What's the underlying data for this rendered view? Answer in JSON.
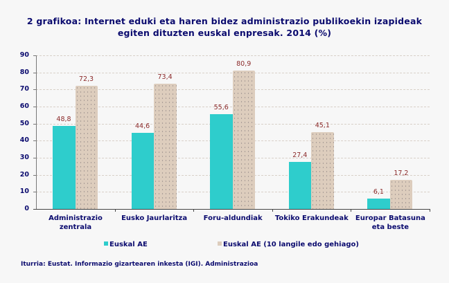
{
  "title_line1": "2 grafikoa: Internet eduki eta haren bidez administrazio publikoekin izapideak",
  "title_line2": "egiten dituzten euskal enpresak. 2014 (%)",
  "y_ticks": [
    "90",
    "80",
    "70",
    "60",
    "50",
    "40",
    "30",
    "20",
    "10",
    "0"
  ],
  "categories": [
    {
      "line1": "Administrazio",
      "line2": "zentrala"
    },
    {
      "line1": "Eusko Jaurlaritza",
      "line2": ""
    },
    {
      "line1": "Foru-aldundiak",
      "line2": ""
    },
    {
      "line1": "Tokiko Erakundeak",
      "line2": ""
    },
    {
      "line1": "Europar Batasuna",
      "line2": "eta beste"
    }
  ],
  "legend": {
    "series1": "Euskal AE",
    "series2": "Euskal AE (10 langile edo gehiago)"
  },
  "colors": {
    "series1": "#2ecdcc",
    "series2": "#ddcdbd",
    "text": "#0a0a6e",
    "value_label": "#8b2a2a"
  },
  "source": "Iturria: Eustat. Informazio gizartearen inkesta (IGI). Administrazioa",
  "labels": {
    "s1": [
      "48,8",
      "44,6",
      "55,6",
      "27,4",
      "6,1"
    ],
    "s2": [
      "72,3",
      "73,4",
      "80,9",
      "45,1",
      "17,2"
    ]
  },
  "chart_data": {
    "type": "bar",
    "title": "2 grafikoa: Internet eduki eta haren bidez administrazio publikoekin izapideak egiten dituzten euskal enpresak. 2014 (%)",
    "categories": [
      "Administrazio zentrala",
      "Eusko Jaurlaritza",
      "Foru-aldundiak",
      "Tokiko Erakundeak",
      "Europar Batasuna eta beste"
    ],
    "series": [
      {
        "name": "Euskal AE",
        "values": [
          48.8,
          44.6,
          55.6,
          27.4,
          6.1
        ]
      },
      {
        "name": "Euskal AE (10 langile edo gehiago)",
        "values": [
          72.3,
          73.4,
          80.9,
          45.1,
          17.2
        ]
      }
    ],
    "xlabel": "",
    "ylabel": "",
    "ylim": [
      0,
      90
    ],
    "yticks": [
      0,
      10,
      20,
      30,
      40,
      50,
      60,
      70,
      80,
      90
    ],
    "grid": true,
    "legend_position": "bottom"
  }
}
